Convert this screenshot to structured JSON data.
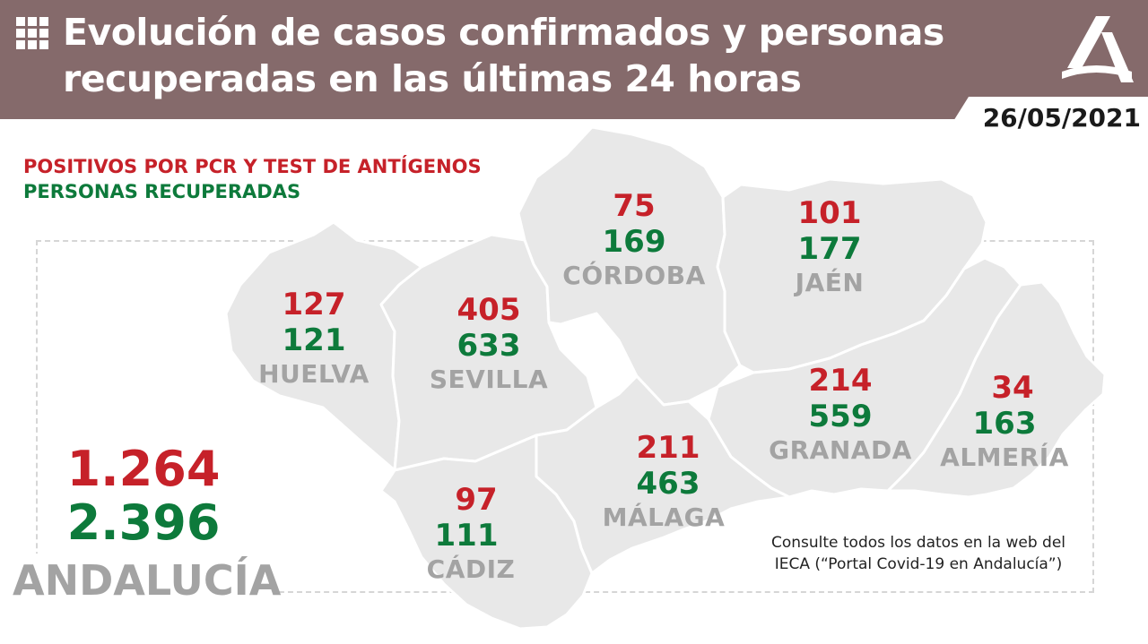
{
  "header": {
    "title_line1": "Evolución de casos confirmados y personas",
    "title_line2": "recuperadas en las últimas 24 horas",
    "date": "26/05/2021",
    "background_color": "#856a6b",
    "icon": "grid-icon",
    "logo": "junta-andalucia-logo"
  },
  "legend": {
    "positives_label": "POSITIVOS POR PCR Y TEST DE ANTÍGENOS",
    "recovered_label": "PERSONAS RECUPERADAS",
    "positives_color": "#c62129",
    "recovered_color": "#0d7a3b"
  },
  "provinces": {
    "huelva": {
      "name": "HUELVA",
      "positives": "127",
      "recovered": "121"
    },
    "sevilla": {
      "name": "SEVILLA",
      "positives": "405",
      "recovered": "633"
    },
    "cordoba": {
      "name": "CÓRDOBA",
      "positives": "75",
      "recovered": "169"
    },
    "jaen": {
      "name": "JAÉN",
      "positives": "101",
      "recovered": "177"
    },
    "granada": {
      "name": "GRANADA",
      "positives": "214",
      "recovered": "559"
    },
    "almeria": {
      "name": "ALMERÍA",
      "positives": "34",
      "recovered": "163"
    },
    "malaga": {
      "name": "MÁLAGA",
      "positives": "211",
      "recovered": "463"
    },
    "cadiz": {
      "name": "CÁDIZ",
      "positives": "97",
      "recovered": "111"
    }
  },
  "total": {
    "name": "ANDALUCÍA",
    "positives": "1.264",
    "recovered": "2.396"
  },
  "source_note": {
    "line1": "Consulte todos los datos en la web del",
    "line2": "IECA (“Portal Covid-19 en Andalucía”)"
  }
}
